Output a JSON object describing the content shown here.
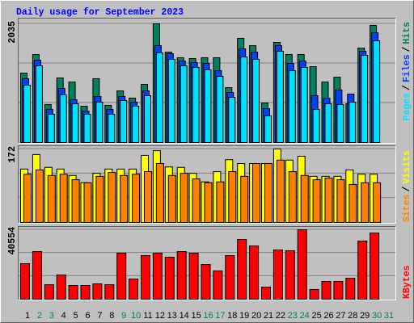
{
  "chart_data": [
    {
      "type": "bar",
      "title": "Daily usage for September 2023",
      "legend_separator": "/",
      "ylim": [
        0,
        2035
      ],
      "yticks": [
        2035
      ],
      "series": [
        {
          "name": "Hits",
          "color": "#00805c",
          "values": [
            1190,
            1509,
            651,
            1107,
            1038,
            623,
            1094,
            637,
            886,
            761,
            997,
            2035,
            1550,
            1454,
            1440,
            1454,
            1454,
            941,
            1786,
            1661,
            678,
            1717,
            1509,
            1509,
            1301,
            1038,
            1121,
            664,
            1620,
            2007,
            0
          ]
        },
        {
          "name": "Files",
          "color": "#0040ff",
          "values": [
            1094,
            1412,
            568,
            927,
            734,
            540,
            789,
            568,
            789,
            692,
            886,
            1661,
            1523,
            1398,
            1370,
            1357,
            1232,
            858,
            1606,
            1550,
            581,
            1661,
            1357,
            1398,
            803,
            761,
            900,
            831,
            1564,
            1883,
            0
          ]
        },
        {
          "name": "Pages",
          "color": "#00e0ff",
          "values": [
            983,
            1315,
            485,
            817,
            664,
            485,
            692,
            485,
            720,
            623,
            803,
            1537,
            1426,
            1315,
            1288,
            1246,
            1135,
            775,
            1467,
            1426,
            457,
            1564,
            1232,
            1288,
            568,
            664,
            651,
            692,
            1495,
            1744,
            0
          ]
        }
      ]
    },
    {
      "type": "bar",
      "legend_separator": "/",
      "ylim": [
        0,
        172
      ],
      "yticks": [
        172
      ],
      "series": [
        {
          "name": "Visits",
          "color": "#ffff00",
          "values": [
            125,
            159,
            129,
            125,
            110,
            93,
            115,
            125,
            125,
            125,
            157,
            168,
            130,
            129,
            115,
            95,
            119,
            147,
            138,
            138,
            138,
            172,
            146,
            155,
            108,
            108,
            108,
            123,
            113,
            113,
            0
          ]
        },
        {
          "name": "Sites",
          "color": "#ff8000",
          "values": [
            113,
            123,
            110,
            113,
            100,
            93,
            108,
            117,
            110,
            113,
            119,
            138,
            110,
            115,
            102,
            93,
            95,
            119,
            108,
            138,
            138,
            146,
            119,
            110,
            100,
            104,
            100,
            89,
            93,
            93,
            0
          ]
        }
      ]
    },
    {
      "type": "bar",
      "ylim": [
        0,
        40554
      ],
      "yticks": [
        40554
      ],
      "categories": [
        "1",
        "2",
        "3",
        "4",
        "5",
        "6",
        "7",
        "8",
        "9",
        "10",
        "11",
        "12",
        "13",
        "14",
        "15",
        "16",
        "17",
        "18",
        "19",
        "20",
        "21",
        "22",
        "23",
        "24",
        "25",
        "26",
        "27",
        "28",
        "29",
        "30",
        "31"
      ],
      "category_colors": [
        "#000000",
        "#00805c",
        "#00805c",
        "#000000",
        "#000000",
        "#000000",
        "#000000",
        "#000000",
        "#00805c",
        "#00805c",
        "#000000",
        "#000000",
        "#000000",
        "#000000",
        "#000000",
        "#00805c",
        "#00805c",
        "#000000",
        "#000000",
        "#000000",
        "#000000",
        "#000000",
        "#00805c",
        "#00805c",
        "#000000",
        "#000000",
        "#000000",
        "#000000",
        "#000000",
        "#00805c",
        "#00805c"
      ],
      "series": [
        {
          "name": "KBytes",
          "color": "#ff0000",
          "values": [
            20749,
            27822,
            8488,
            14147,
            8017,
            8017,
            8960,
            8488,
            26879,
            11789,
            25464,
            26879,
            24521,
            27822,
            26879,
            20277,
            16505,
            25464,
            34895,
            31123,
            7073,
            28765,
            28293,
            40554,
            5659,
            10374,
            10374,
            12261,
            33952,
            38668,
            0
          ]
        }
      ]
    }
  ]
}
